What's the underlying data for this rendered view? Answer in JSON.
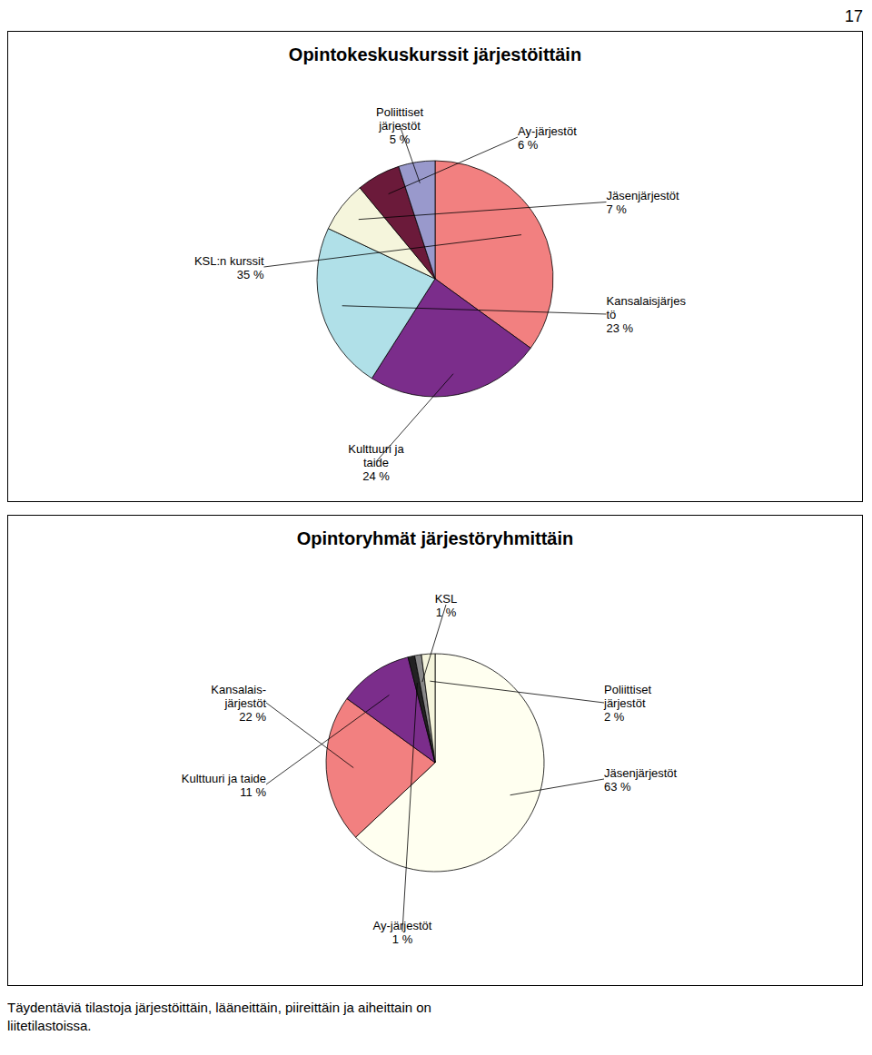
{
  "chart_data": [
    {
      "type": "pie",
      "title": "Opintokeskuskurssit järjestöittäin",
      "categories": [
        "KSL:n kurssit",
        "Kulttuuri ja\ntaide",
        "Kansalaisjärjes\ntö",
        "Jäsenjärjestöt",
        "Ay-järjestöt",
        "Poliittiset\njärjestöt"
      ],
      "values": [
        35,
        24,
        23,
        7,
        6,
        5
      ],
      "value_labels": [
        "35 %",
        "24 %",
        "23 %",
        "7 %",
        "6 %",
        "5 %"
      ],
      "colors": [
        "#F28080",
        "#7B2D8B",
        "#B0E0E8",
        "#F5F5DC",
        "#6B1A3A",
        "#9999CC"
      ],
      "data_labels": true,
      "annotations": [
        "17"
      ]
    },
    {
      "type": "pie",
      "title": "Opintoryhmät järjestöryhmittäin",
      "categories": [
        "Jäsenjärjestöt",
        "Kansalais-\njärjestöt",
        "Kulttuuri ja taide",
        "Ay-järjestöt",
        "KSL",
        "Poliittiset\njärjestöt"
      ],
      "values": [
        63,
        22,
        11,
        1,
        1,
        2
      ],
      "value_labels": [
        "63 %",
        "22 %",
        "11 %",
        "1 %",
        "1 %",
        "2 %"
      ],
      "colors": [
        "#FFFFF0",
        "#F28080",
        "#7B2D8B",
        "#222222",
        "#888888",
        "#F5F5DC"
      ],
      "data_labels": true,
      "annotations": [
        "Täydentäviä tilastoja järjestöittäin, lääneittäin, piireittäin ja aiheittain on\nliitetilastoissa."
      ]
    }
  ]
}
